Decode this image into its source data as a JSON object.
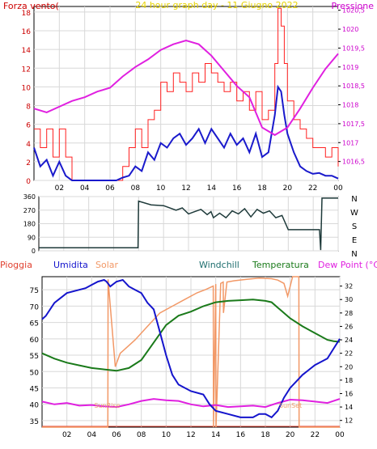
{
  "colors": {
    "wind_axis": "#cc0000",
    "pressure_axis": "#cc00cc",
    "title": "#e6d200",
    "wind_avg": "#1a1acc",
    "wind_gust": "#ff2020",
    "pressure": "#e020e0",
    "direction": "#1e3a3a",
    "humidity": "#1414cc",
    "solar": "#f29866",
    "windchill": "#1e6e6e",
    "temperature": "#1a7a1a",
    "dewpoint": "#e020e0",
    "rain": "#e04030",
    "sun": "#f0a070"
  },
  "chart_data": [
    {
      "type": "line",
      "title": "24 hour graph day - 11 Giugno 2022",
      "left_label": "Forza vento(",
      "right_label": "Pressione",
      "xlim": [
        0,
        24
      ],
      "x_ticks": [
        "02",
        "04",
        "06",
        "08",
        "10",
        "12",
        "14",
        "16",
        "18",
        "20",
        "22",
        "00"
      ],
      "y_left_lim": [
        0,
        18.6
      ],
      "y_left_ticks": [
        "0",
        "2",
        "4",
        "6",
        "8",
        "10",
        "12",
        "14",
        "16",
        "18"
      ],
      "y_right_lim": [
        1016,
        1020.6
      ],
      "y_right_ticks": [
        "1016,5",
        "1017",
        "1017,5",
        "1018",
        "1018,5",
        "1019",
        "1019,5",
        "1020",
        "1020,5"
      ],
      "series": [
        {
          "key": "gust",
          "axis": "left",
          "step": true,
          "x": [
            0,
            0.5,
            1,
            1.5,
            2,
            2.5,
            3,
            3.5,
            4,
            4.5,
            5,
            5.5,
            6,
            6.5,
            7,
            7.5,
            8,
            8.5,
            9,
            9.5,
            10,
            10.5,
            11,
            11.5,
            12,
            12.5,
            13,
            13.5,
            14,
            14.5,
            15,
            15.5,
            16,
            16.5,
            17,
            17.5,
            18,
            18.5,
            19,
            19.25,
            19.5,
            19.75,
            20,
            20.5,
            21,
            21.5,
            22,
            22.5,
            23,
            23.5,
            24
          ],
          "y": [
            5.5,
            3.5,
            5.5,
            2.5,
            5.5,
            2.5,
            0,
            0,
            0,
            0,
            0,
            0,
            0,
            0,
            1.5,
            3.5,
            5.5,
            3.5,
            6.5,
            7.5,
            10.5,
            9.5,
            11.5,
            10.5,
            9.5,
            11.5,
            10.5,
            12.5,
            11.5,
            10.5,
            9.5,
            10.5,
            8.5,
            9.5,
            7.5,
            9.5,
            6.5,
            7.5,
            12.5,
            18.4,
            16.5,
            12.5,
            8.5,
            6.5,
            5.5,
            4.5,
            3.5,
            3.5,
            2.5,
            3.5,
            1.5
          ]
        },
        {
          "key": "avg",
          "axis": "left",
          "step": false,
          "x": [
            0,
            0.5,
            1,
            1.5,
            2,
            2.5,
            3,
            3.5,
            4,
            4.5,
            5,
            5.5,
            6,
            6.5,
            7,
            7.5,
            8,
            8.5,
            9,
            9.5,
            10,
            10.5,
            11,
            11.5,
            12,
            12.5,
            13,
            13.5,
            14,
            14.5,
            15,
            15.5,
            16,
            16.5,
            17,
            17.5,
            18,
            18.5,
            19,
            19.25,
            19.5,
            19.75,
            20,
            20.5,
            21,
            21.5,
            22,
            22.5,
            23,
            23.5,
            24
          ],
          "y": [
            3.5,
            1.5,
            2.2,
            0.5,
            2.0,
            0.5,
            0,
            0,
            0,
            0,
            0,
            0,
            0,
            0,
            0.3,
            0.5,
            1.5,
            1.0,
            3.0,
            2.2,
            4.0,
            3.5,
            4.5,
            5.0,
            3.8,
            4.5,
            5.5,
            4.0,
            5.5,
            4.5,
            3.5,
            5.0,
            3.8,
            4.5,
            3.0,
            5.0,
            2.5,
            3.0,
            7.0,
            10.0,
            9.5,
            7.0,
            5.0,
            3.0,
            1.5,
            1.0,
            0.7,
            0.8,
            0.5,
            0.5,
            0.2
          ]
        },
        {
          "key": "pressure",
          "axis": "right",
          "step": false,
          "x": [
            0,
            1,
            2,
            3,
            4,
            5,
            6,
            7,
            8,
            9,
            10,
            11,
            12,
            13,
            14,
            15,
            16,
            17,
            18,
            19,
            20,
            21,
            22,
            23,
            24
          ],
          "y": [
            1017.9,
            1017.8,
            1017.95,
            1018.1,
            1018.2,
            1018.35,
            1018.45,
            1018.75,
            1019.0,
            1019.2,
            1019.45,
            1019.6,
            1019.7,
            1019.6,
            1019.3,
            1018.9,
            1018.5,
            1018.2,
            1017.4,
            1017.2,
            1017.4,
            1017.9,
            1018.45,
            1018.95,
            1019.35
          ]
        }
      ]
    },
    {
      "type": "line",
      "xlim": [
        0,
        24
      ],
      "y_lim": [
        0,
        360
      ],
      "y_ticks": [
        "0",
        "90",
        "180",
        "270",
        "360"
      ],
      "right_labels": [
        "N",
        "W",
        "S",
        "E",
        "N"
      ],
      "series": [
        {
          "key": "direction",
          "x": [
            0,
            1,
            2,
            3,
            4,
            5,
            6,
            7,
            7.95,
            8.0,
            9,
            10,
            11,
            11.5,
            12,
            12.5,
            13,
            13.5,
            13.8,
            14,
            14.5,
            15,
            15.5,
            16,
            16.5,
            17,
            17.5,
            18,
            18.5,
            19,
            19.5,
            20,
            21,
            22,
            22.5,
            22.6,
            22.7,
            24
          ],
          "y": [
            20,
            20,
            20,
            20,
            20,
            20,
            20,
            20,
            20,
            330,
            305,
            300,
            270,
            285,
            245,
            260,
            275,
            240,
            260,
            220,
            250,
            220,
            265,
            245,
            280,
            225,
            275,
            250,
            265,
            220,
            235,
            140,
            140,
            140,
            140,
            5,
            350,
            350
          ]
        }
      ]
    },
    {
      "type": "line",
      "legend": [
        "Pioggia",
        "Umidita",
        "Solar",
        "Windchill",
        "Temperatura",
        "Dew Point (°C)"
      ],
      "xlim": [
        0,
        24
      ],
      "x_ticks": [
        "02",
        "04",
        "06",
        "08",
        "10",
        "12",
        "14",
        "16",
        "18",
        "20",
        "22",
        "00"
      ],
      "y_left_lim": [
        33,
        79
      ],
      "y_left_ticks": [
        "35",
        "40",
        "45",
        "50",
        "55",
        "60",
        "65",
        "70",
        "75"
      ],
      "y_right_lim": [
        11,
        33.4
      ],
      "y_right_ticks": [
        "12",
        "14",
        "16",
        "18",
        "20",
        "22",
        "24",
        "26",
        "28",
        "30",
        "32"
      ],
      "annotations": [
        "SunRise",
        "SunSet"
      ],
      "series": [
        {
          "key": "humidity",
          "axis": "left",
          "x": [
            0,
            0.3,
            1,
            2,
            3,
            3.5,
            4,
            4.5,
            5,
            5.2,
            5.5,
            6,
            6.5,
            7,
            7.5,
            8,
            8.5,
            9,
            9.5,
            10,
            10.5,
            11,
            12,
            13,
            13.5,
            14,
            15,
            16,
            17,
            17.5,
            18,
            18.5,
            19,
            19.5,
            20,
            21,
            22,
            23,
            23.5,
            24
          ],
          "y": [
            66,
            67,
            71,
            74,
            75,
            75.5,
            76.5,
            77.5,
            78,
            77.5,
            76,
            77.5,
            78,
            76,
            75,
            74,
            71,
            69,
            62,
            55,
            49,
            46,
            44,
            43,
            40,
            38,
            37,
            36,
            36,
            37,
            37,
            36,
            38,
            42,
            45,
            49,
            52,
            54,
            57,
            60
          ]
        },
        {
          "key": "solar",
          "axis": "right",
          "x": [
            0,
            5.3,
            5.32,
            5.9,
            6.3,
            6.9,
            7.5,
            8.5,
            9.5,
            10.5,
            11.5,
            12.5,
            13.2,
            13.8,
            13.82,
            14.0,
            14.02,
            14.4,
            14.6,
            14.62,
            14.9,
            15.5,
            16.5,
            17.5,
            18.5,
            19.0,
            19.5,
            19.8,
            20.2,
            20.5,
            20.7,
            20.72,
            24
          ],
          "y": [
            11,
            11,
            33,
            20,
            22,
            23,
            24,
            26,
            28,
            29,
            30,
            31,
            31.5,
            32,
            11,
            32.3,
            11,
            32.4,
            32.6,
            28,
            32.6,
            32.8,
            33,
            33.2,
            33.1,
            32.9,
            32.4,
            30.5,
            33.4,
            33.4,
            33.4,
            11,
            11
          ]
        },
        {
          "key": "temperature",
          "axis": "right",
          "x": [
            0,
            1,
            2,
            3,
            4,
            5,
            6,
            7,
            8,
            9,
            10,
            11,
            12,
            13,
            14,
            15,
            16,
            17,
            18,
            18.5,
            19,
            20,
            21,
            22,
            23,
            23.5,
            24
          ],
          "y": [
            22.0,
            21.2,
            20.6,
            20.2,
            19.8,
            19.6,
            19.4,
            19.8,
            21.0,
            23.6,
            26.2,
            27.6,
            28.2,
            29.0,
            29.6,
            29.8,
            29.9,
            30.0,
            29.8,
            29.6,
            28.8,
            27.2,
            26.0,
            25.0,
            24.0,
            23.8,
            23.7
          ]
        },
        {
          "key": "dewpoint",
          "axis": "right",
          "x": [
            0,
            1,
            2,
            3,
            4,
            5,
            6,
            7,
            8,
            9,
            10,
            11,
            12,
            13,
            14,
            15,
            16,
            17,
            18,
            19,
            20,
            21,
            22,
            23,
            24
          ],
          "y": [
            14.8,
            14.4,
            14.6,
            14.2,
            14.3,
            14.1,
            14.0,
            14.4,
            14.9,
            15.2,
            15.0,
            14.9,
            14.4,
            14.1,
            14.3,
            14.0,
            14.1,
            14.2,
            14.0,
            14.6,
            15.1,
            15.0,
            14.8,
            14.6,
            15.2
          ]
        }
      ]
    }
  ]
}
